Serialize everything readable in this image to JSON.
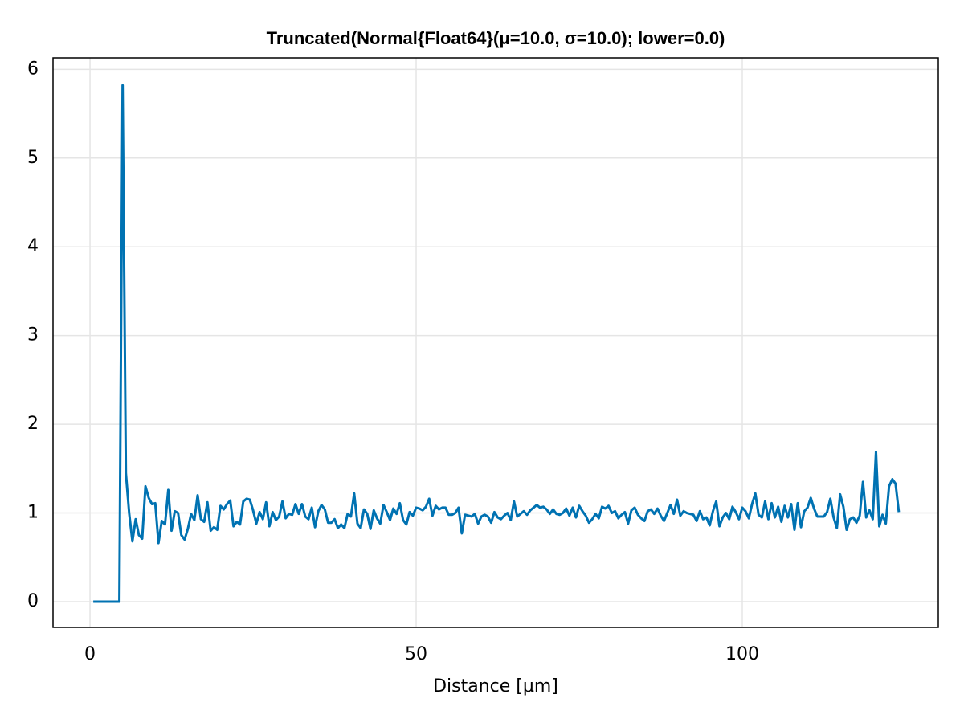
{
  "chart_data": {
    "type": "line",
    "title": "Truncated(Normal{Float64}(μ=10.0, σ=10.0); lower=0.0)",
    "x_label": "Distance [μm]",
    "xlim": [
      -5.67,
      130.05
    ],
    "ylim": [
      -0.29,
      6.13
    ],
    "xticks": [
      0,
      50,
      100
    ],
    "yticks": [
      0,
      1,
      2,
      3,
      4,
      5,
      6
    ],
    "grid": true,
    "x": [
      0.5,
      1,
      1.5,
      2,
      2.5,
      3,
      3.5,
      4,
      4.5,
      5,
      5.5,
      6,
      6.5,
      7,
      7.5,
      8,
      8.5,
      9,
      9.5,
      10,
      10.5,
      11,
      11.5,
      12,
      12.5,
      13,
      13.5,
      14,
      14.5,
      15,
      15.5,
      16,
      16.5,
      17,
      17.5,
      18,
      18.5,
      19,
      19.5,
      20,
      20.5,
      21,
      21.5,
      22,
      22.5,
      23,
      23.5,
      24,
      24.5,
      25,
      25.5,
      26,
      26.5,
      27,
      27.5,
      28,
      28.5,
      29,
      29.5,
      30,
      30.5,
      31,
      31.5,
      32,
      32.5,
      33,
      33.5,
      34,
      34.5,
      35,
      35.5,
      36,
      36.5,
      37,
      37.5,
      38,
      38.5,
      39,
      39.5,
      40,
      40.5,
      41,
      41.5,
      42,
      42.5,
      43,
      43.5,
      44,
      44.5,
      45,
      45.5,
      46,
      46.5,
      47,
      47.5,
      48,
      48.5,
      49,
      49.5,
      50,
      50.5,
      51,
      51.5,
      52,
      52.5,
      53,
      53.5,
      54,
      54.5,
      55,
      55.5,
      56,
      56.5,
      57,
      57.5,
      58,
      58.5,
      59,
      59.5,
      60,
      60.5,
      61,
      61.5,
      62,
      62.5,
      63,
      63.5,
      64,
      64.5,
      65,
      65.5,
      66,
      66.5,
      67,
      67.5,
      68,
      68.5,
      69,
      69.5,
      70,
      70.5,
      71,
      71.5,
      72,
      72.5,
      73,
      73.5,
      74,
      74.5,
      75,
      75.5,
      76,
      76.5,
      77,
      77.5,
      78,
      78.5,
      79,
      79.5,
      80,
      80.5,
      81,
      81.5,
      82,
      82.5,
      83,
      83.5,
      84,
      84.5,
      85,
      85.5,
      86,
      86.5,
      87,
      87.5,
      88,
      88.5,
      89,
      89.5,
      90,
      90.5,
      91,
      91.5,
      92,
      92.5,
      93,
      93.5,
      94,
      94.5,
      95,
      95.5,
      96,
      96.5,
      97,
      97.5,
      98,
      98.5,
      99,
      99.5,
      100,
      100.5,
      101,
      101.5,
      102,
      102.5,
      103,
      103.5,
      104,
      104.5,
      105,
      105.5,
      106,
      106.5,
      107,
      107.5,
      108,
      108.5,
      109,
      109.5,
      110,
      110.5,
      111,
      111.5,
      112,
      112.5,
      113,
      113.5,
      114,
      114.5,
      115,
      115.5,
      116,
      116.5,
      117,
      117.5,
      118,
      118.5,
      119,
      119.5,
      120,
      120.5,
      121,
      121.5,
      122,
      122.5,
      123,
      123.5,
      124
    ],
    "series": [
      {
        "color": "#0072b2",
        "values": [
          0,
          0,
          0,
          0,
          0,
          0,
          0,
          0,
          0,
          5.82,
          1.45,
          1.0,
          0.68,
          0.93,
          0.75,
          0.71,
          1.3,
          1.17,
          1.1,
          1.11,
          0.66,
          0.91,
          0.87,
          1.26,
          0.8,
          1.02,
          1.0,
          0.75,
          0.7,
          0.82,
          0.99,
          0.92,
          1.2,
          0.93,
          0.9,
          1.12,
          0.8,
          0.84,
          0.81,
          1.08,
          1.04,
          1.1,
          1.14,
          0.85,
          0.9,
          0.87,
          1.13,
          1.16,
          1.15,
          1.03,
          0.88,
          1.01,
          0.93,
          1.12,
          0.85,
          1.01,
          0.92,
          0.96,
          1.13,
          0.94,
          0.99,
          0.98,
          1.1,
          0.99,
          1.1,
          0.96,
          0.93,
          1.06,
          0.84,
          1.02,
          1.09,
          1.04,
          0.89,
          0.89,
          0.93,
          0.83,
          0.87,
          0.83,
          0.99,
          0.96,
          1.22,
          0.88,
          0.83,
          1.04,
          0.99,
          0.82,
          1.03,
          0.94,
          0.88,
          1.09,
          1.01,
          0.92,
          1.05,
          0.99,
          1.11,
          0.92,
          0.87,
          1.01,
          0.97,
          1.06,
          1.05,
          1.03,
          1.07,
          1.16,
          0.97,
          1.08,
          1.04,
          1.06,
          1.06,
          0.98,
          0.98,
          1.0,
          1.06,
          0.77,
          0.98,
          0.97,
          0.96,
          0.99,
          0.88,
          0.96,
          0.98,
          0.96,
          0.89,
          1.01,
          0.95,
          0.93,
          0.97,
          1.0,
          0.92,
          1.13,
          0.96,
          0.99,
          1.02,
          0.98,
          1.03,
          1.06,
          1.09,
          1.06,
          1.07,
          1.04,
          0.99,
          1.04,
          0.99,
          0.98,
          1.0,
          1.05,
          0.97,
          1.06,
          0.95,
          1.08,
          1.02,
          0.97,
          0.89,
          0.93,
          0.99,
          0.94,
          1.07,
          1.05,
          1.08,
          1.0,
          1.02,
          0.94,
          0.98,
          1.01,
          0.88,
          1.03,
          1.06,
          0.98,
          0.94,
          0.91,
          1.02,
          1.04,
          0.99,
          1.05,
          0.97,
          0.91,
          1.0,
          1.09,
          0.99,
          1.15,
          0.97,
          1.02,
          1.0,
          0.99,
          0.98,
          0.91,
          1.02,
          0.93,
          0.95,
          0.86,
          1.02,
          1.13,
          0.85,
          0.95,
          1.0,
          0.93,
          1.07,
          1.01,
          0.93,
          1.06,
          1.02,
          0.94,
          1.1,
          1.22,
          0.98,
          0.95,
          1.13,
          0.93,
          1.11,
          0.95,
          1.07,
          0.9,
          1.08,
          0.95,
          1.1,
          0.81,
          1.11,
          0.84,
          1.02,
          1.06,
          1.17,
          1.05,
          0.96,
          0.96,
          0.96,
          1.01,
          1.16,
          0.95,
          0.83,
          1.21,
          1.07,
          0.81,
          0.93,
          0.95,
          0.89,
          0.97,
          1.35,
          0.95,
          1.03,
          0.93,
          1.69,
          0.85,
          0.98,
          0.88,
          1.3,
          1.38,
          1.33,
          1.01
        ]
      }
    ]
  }
}
